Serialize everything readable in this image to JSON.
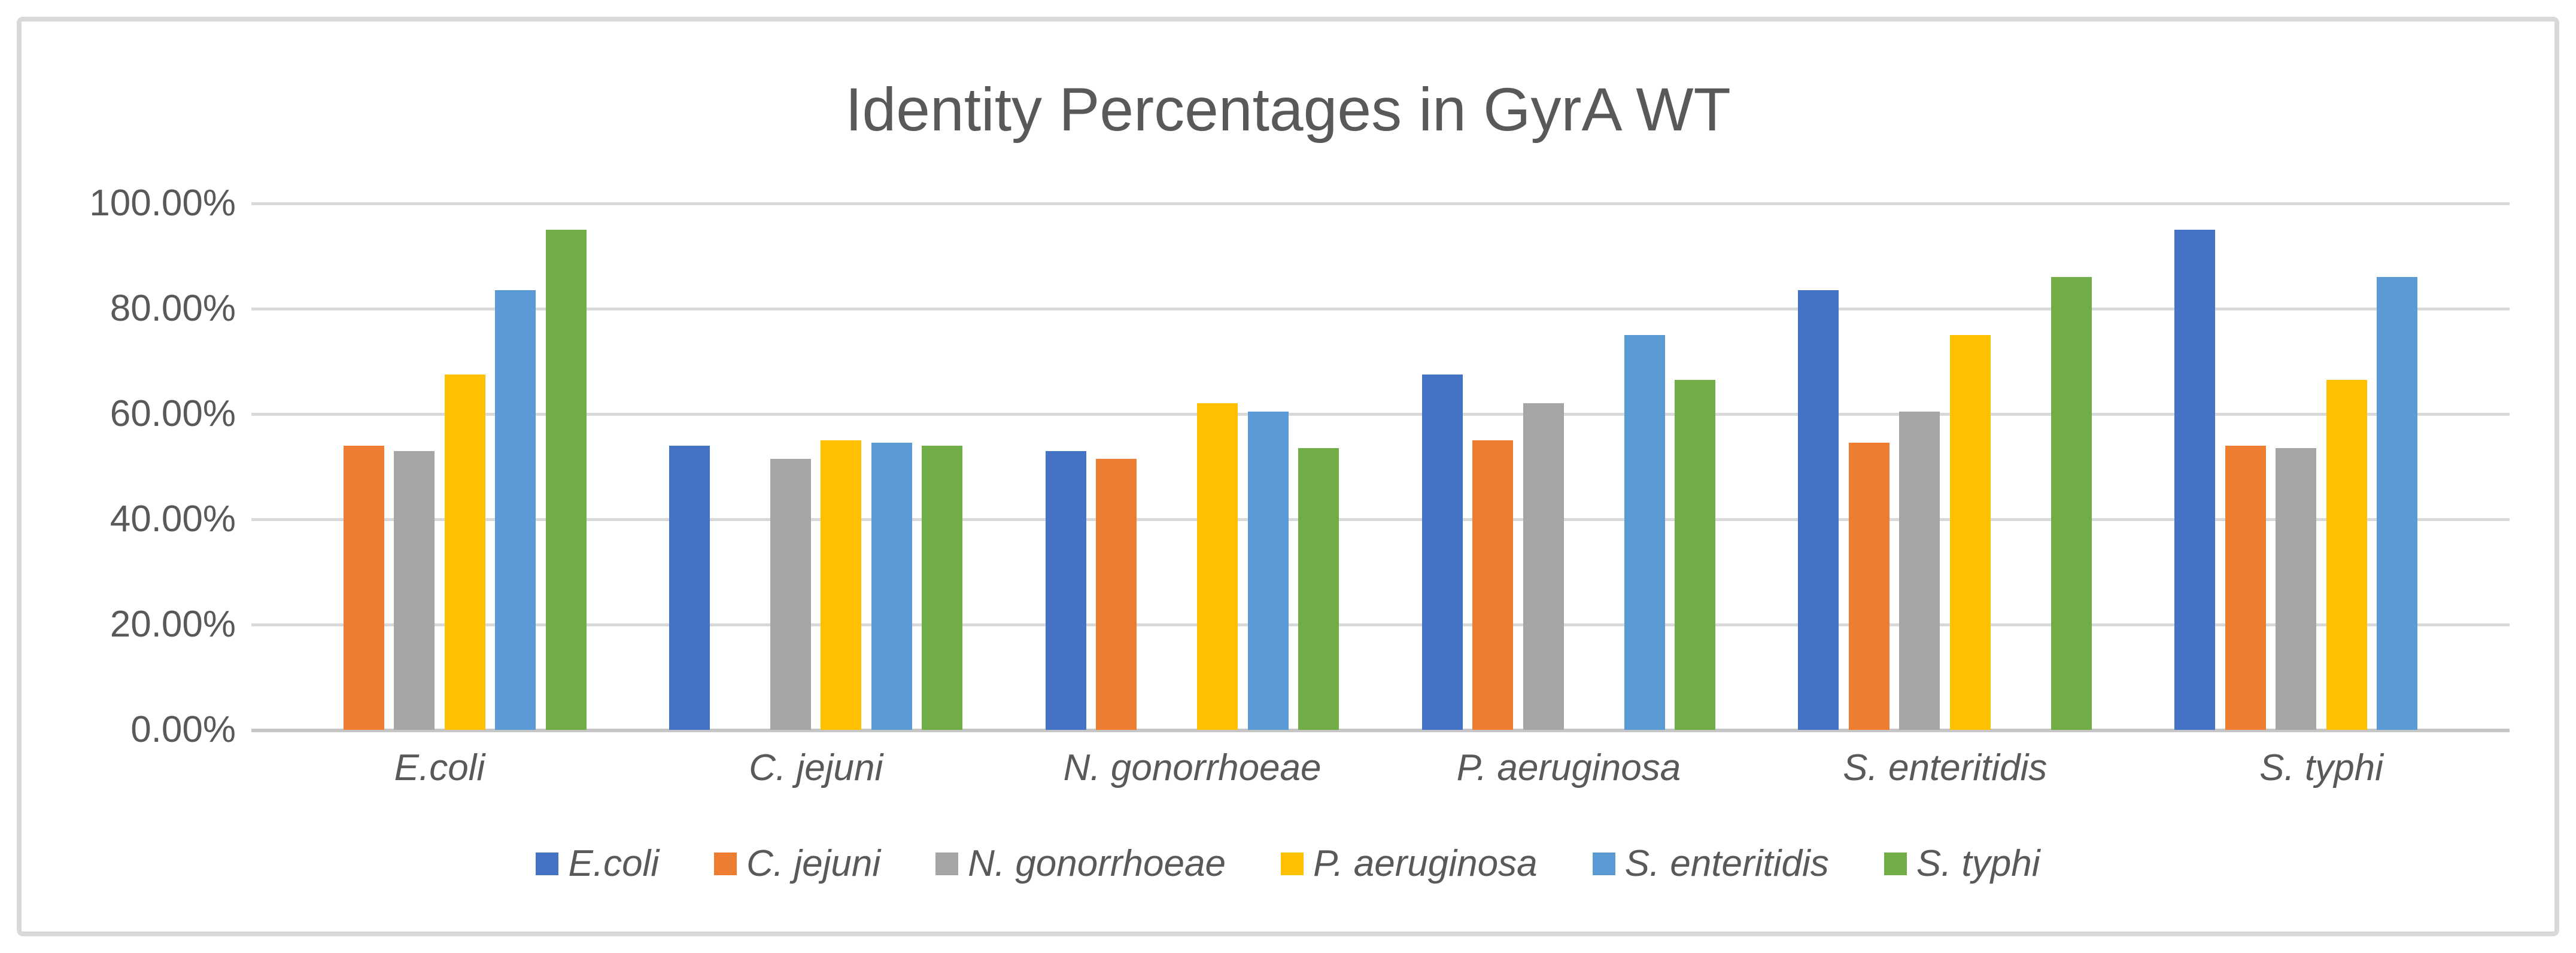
{
  "chart_data": {
    "type": "bar",
    "title": "Identity Percentages in GyrA WT",
    "categories": [
      "E.coli",
      "C. jejuni",
      "N. gonorrhoeae",
      "P. aeruginosa",
      "S. enteritidis",
      "S. typhi"
    ],
    "series": [
      {
        "name": "E.coli",
        "color": "#4472C4",
        "values": [
          null,
          54,
          53,
          67.5,
          83.5,
          95
        ]
      },
      {
        "name": "C. jejuni",
        "color": "#ED7D31",
        "values": [
          54,
          null,
          51.5,
          55,
          54.5,
          54
        ]
      },
      {
        "name": "N. gonorrhoeae",
        "color": "#A5A5A5",
        "values": [
          53,
          51.5,
          null,
          62,
          60.5,
          53.5
        ]
      },
      {
        "name": "P. aeruginosa",
        "color": "#FFC000",
        "values": [
          67.5,
          55,
          62,
          null,
          75,
          66.5
        ]
      },
      {
        "name": "S. enteritidis",
        "color": "#5B9BD5",
        "values": [
          83.5,
          54.5,
          60.5,
          75,
          null,
          86
        ]
      },
      {
        "name": "S. typhi",
        "color": "#70AD47",
        "values": [
          95,
          54,
          53.5,
          66.5,
          86,
          null
        ]
      }
    ],
    "y_axis": {
      "ticks": [
        "100.00%",
        "80.00%",
        "60.00%",
        "40.00%",
        "20.00%",
        "0.00%"
      ],
      "tick_values": [
        100,
        80,
        60,
        40,
        20,
        0
      ],
      "min": 0,
      "max": 100,
      "grid": true
    },
    "legend": {
      "position": "bottom",
      "items": [
        "E.coli",
        "C. jejuni",
        "N. gonorrhoeae",
        "P. aeruginosa",
        "S. enteritidis",
        "S. typhi"
      ]
    },
    "colors": {
      "text": "#595959",
      "gridline": "#D9D9D9",
      "axis_line": "#C6C6C6",
      "chart_border": "#D9D9D9",
      "background": "#FFFFFF"
    }
  }
}
